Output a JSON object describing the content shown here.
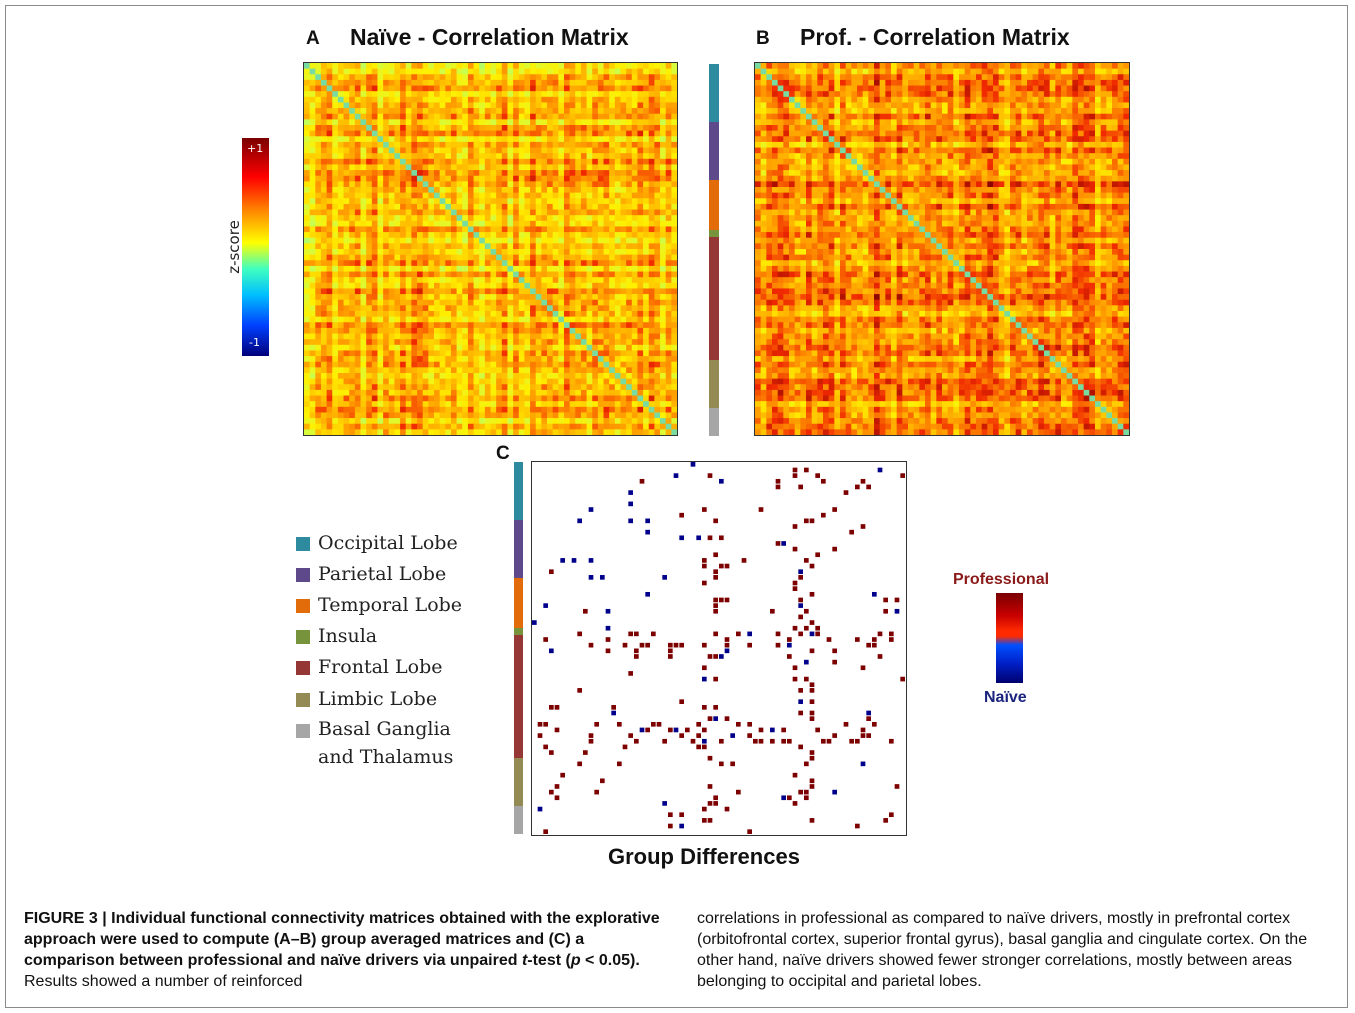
{
  "figure": {
    "panel_a": {
      "letter": "A",
      "title": "Naïve - Correlation Matrix"
    },
    "panel_b": {
      "letter": "B",
      "title": "Prof. - Correlation Matrix"
    },
    "panel_c": {
      "letter": "C",
      "title": "Group Differences"
    },
    "zscale": {
      "label": "z-score",
      "max_label": "+1",
      "min_label": "-1"
    },
    "diff_scale": {
      "top_label": "Professional",
      "bottom_label": "Naïve",
      "top_color": "#8b0000",
      "bottom_color": "#00008b"
    },
    "regions": [
      {
        "name": "Occipital Lobe",
        "color": "#2e8a9e"
      },
      {
        "name": "Parietal Lobe",
        "color": "#5e4a8a"
      },
      {
        "name": "Temporal Lobe",
        "color": "#e36c0a"
      },
      {
        "name": "Insula",
        "color": "#77933c"
      },
      {
        "name": "Frontal Lobe",
        "color": "#953735"
      },
      {
        "name": "Limbic Lobe",
        "color": "#948a54"
      },
      {
        "name": "Basal Ganglia and Thalamus",
        "name_line1": "Basal Ganglia",
        "name_line2": "and Thalamus",
        "color": "#a6a6a6"
      }
    ]
  },
  "caption": {
    "left_bold_1": "FIGURE 3 | Individual functional connectivity matrices obtained with the explorative approach were used to compute (A–B) group averaged matrices and (C) a comparison between professional and naïve drivers via unpaired ",
    "left_bold_t": "t",
    "left_bold_2": "-test (",
    "left_bold_p": "p",
    "left_bold_3": " < 0.05).",
    "left_rest": " Results showed a number of reinforced",
    "right": "correlations in professional as compared to naïve drivers, mostly in prefrontal cortex (orbitofrontal cortex, superior frontal gyrus), basal ganglia and cingulate cortex. On the other hand, naïve drivers showed fewer stronger correlations, mostly between areas belonging to occipital and parietal lobes."
  }
}
